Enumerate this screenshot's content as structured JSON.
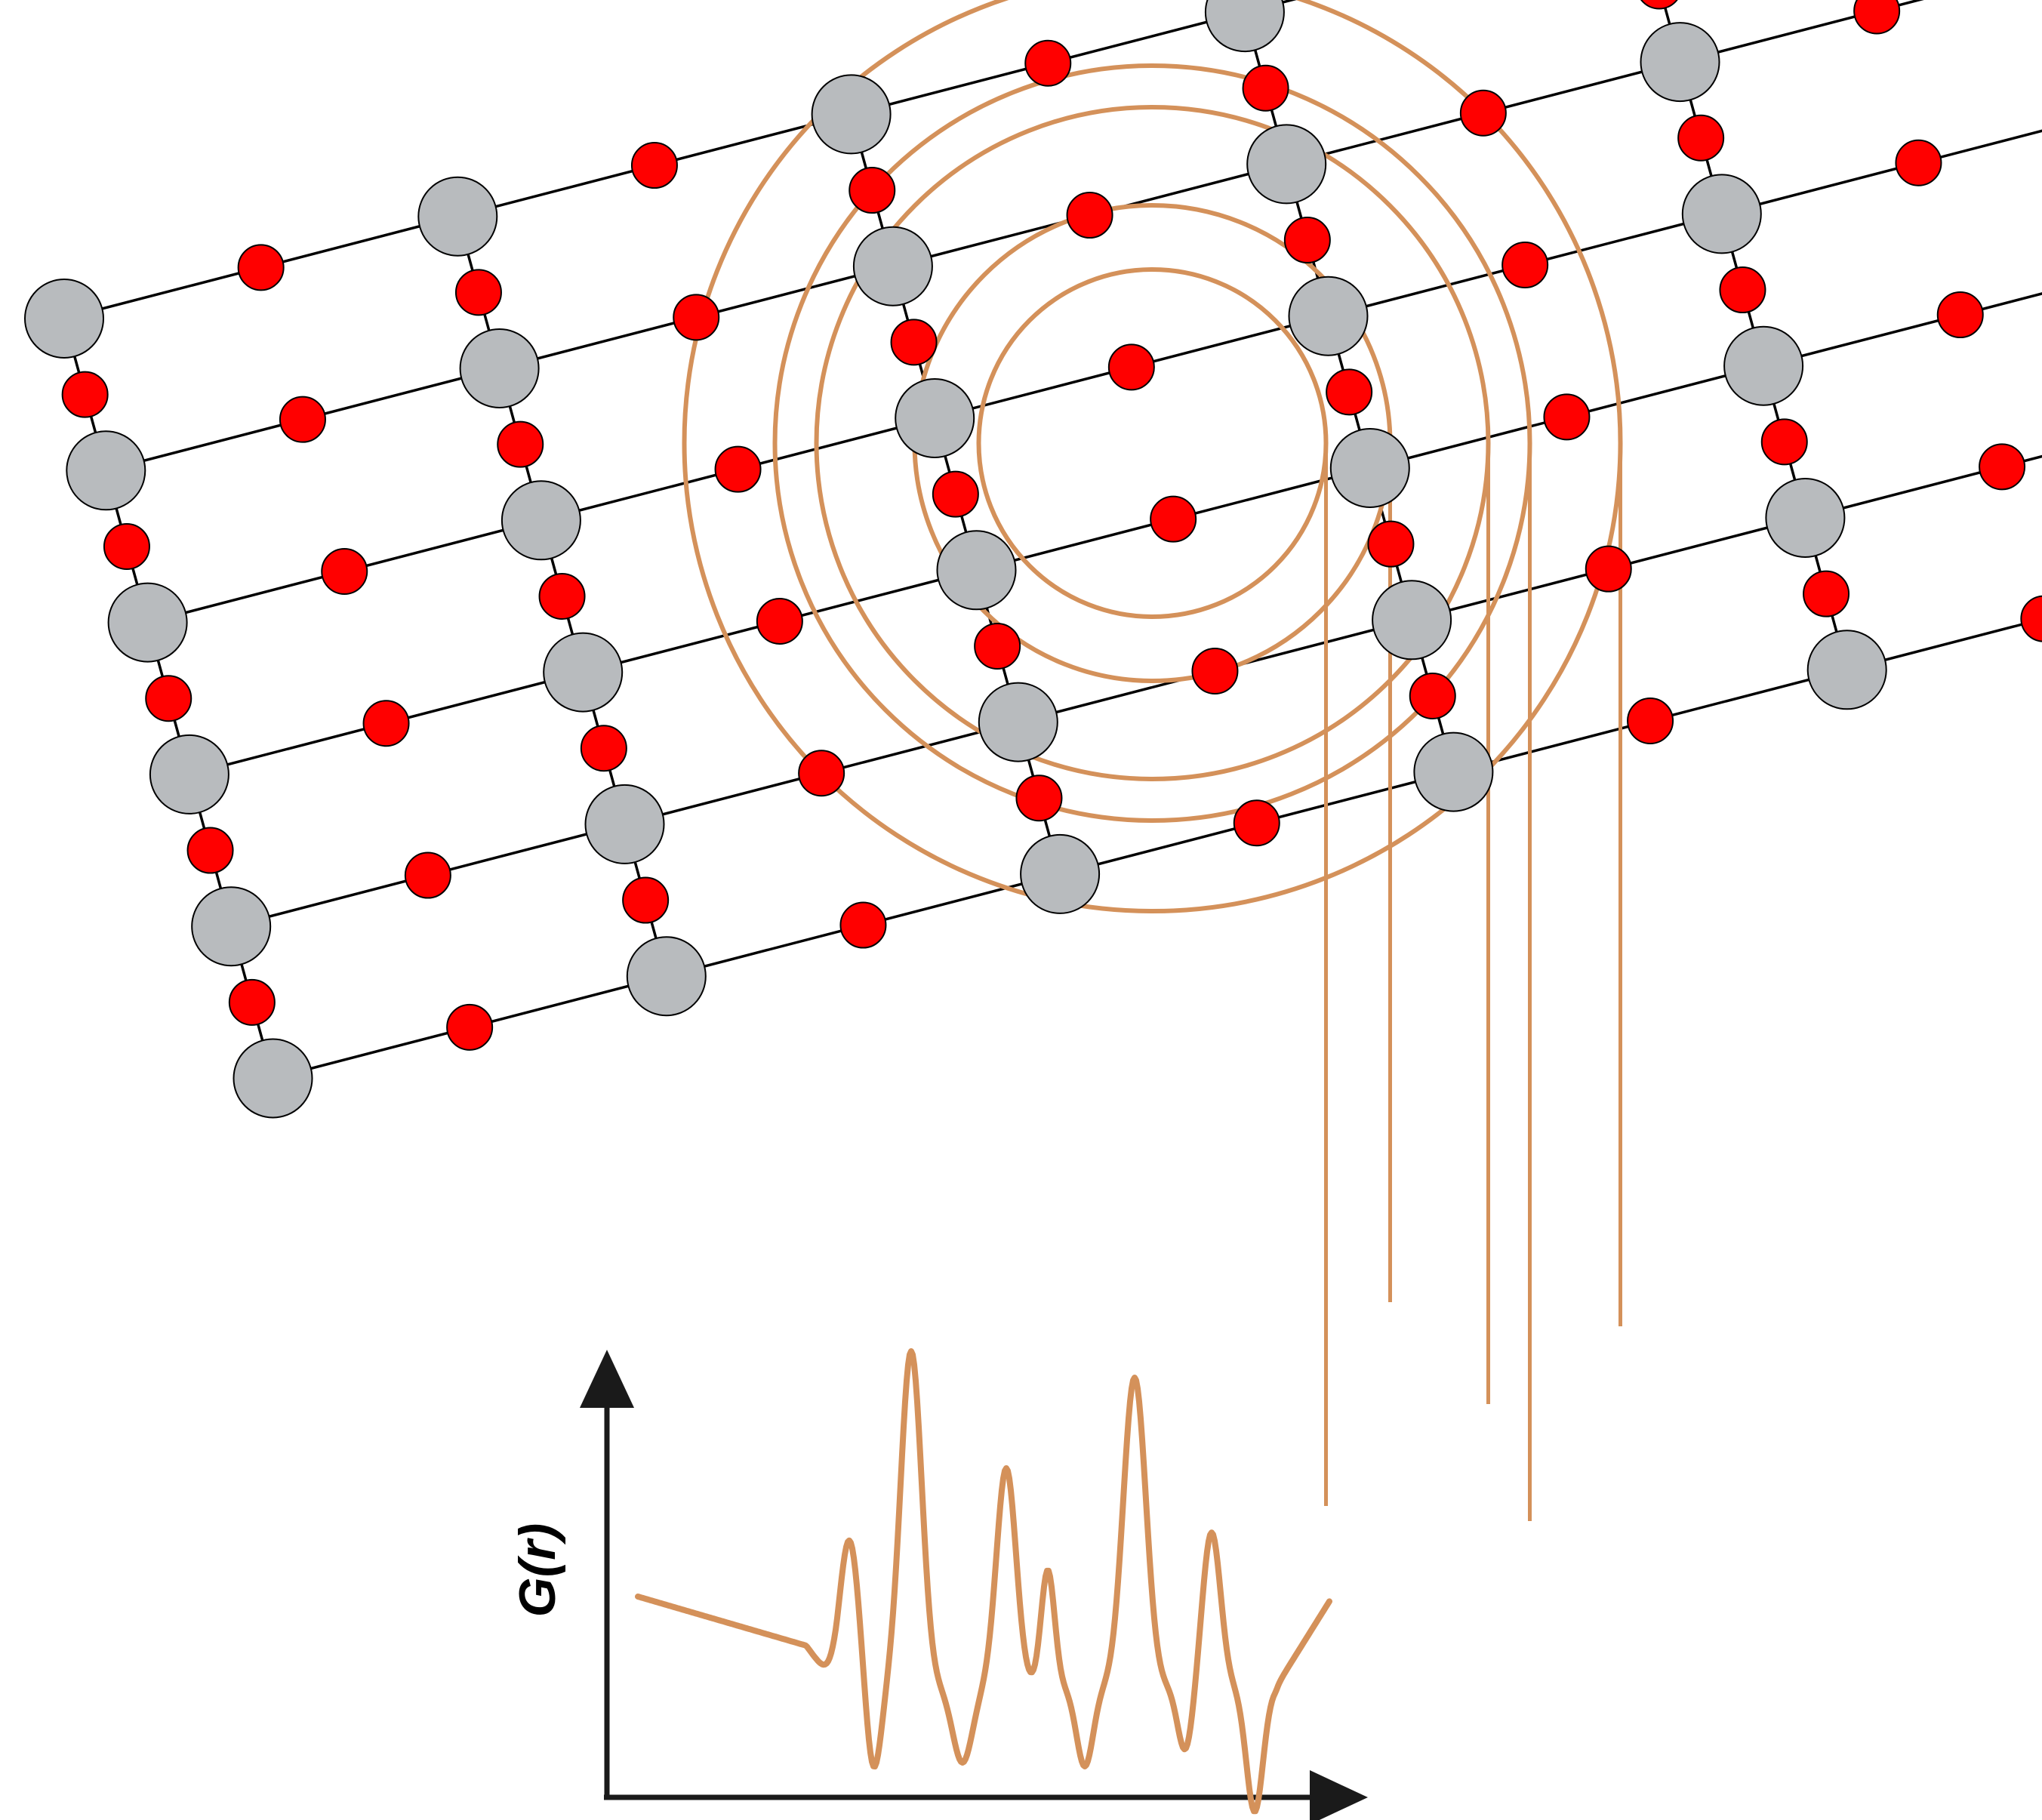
{
  "lattice": {
    "columns": 6,
    "rows": 6,
    "large_atom_color": "#b8bbbe",
    "small_atom_color": "#ff0000",
    "bond_color": "#000000"
  },
  "shells": {
    "count": 5,
    "color": "#d4915a"
  },
  "plot": {
    "y_axis_label": "G(r)",
    "x_axis_label": "",
    "axis_color": "#1a1a1a",
    "curve_color": "#d4915a",
    "peak_count": 5
  }
}
